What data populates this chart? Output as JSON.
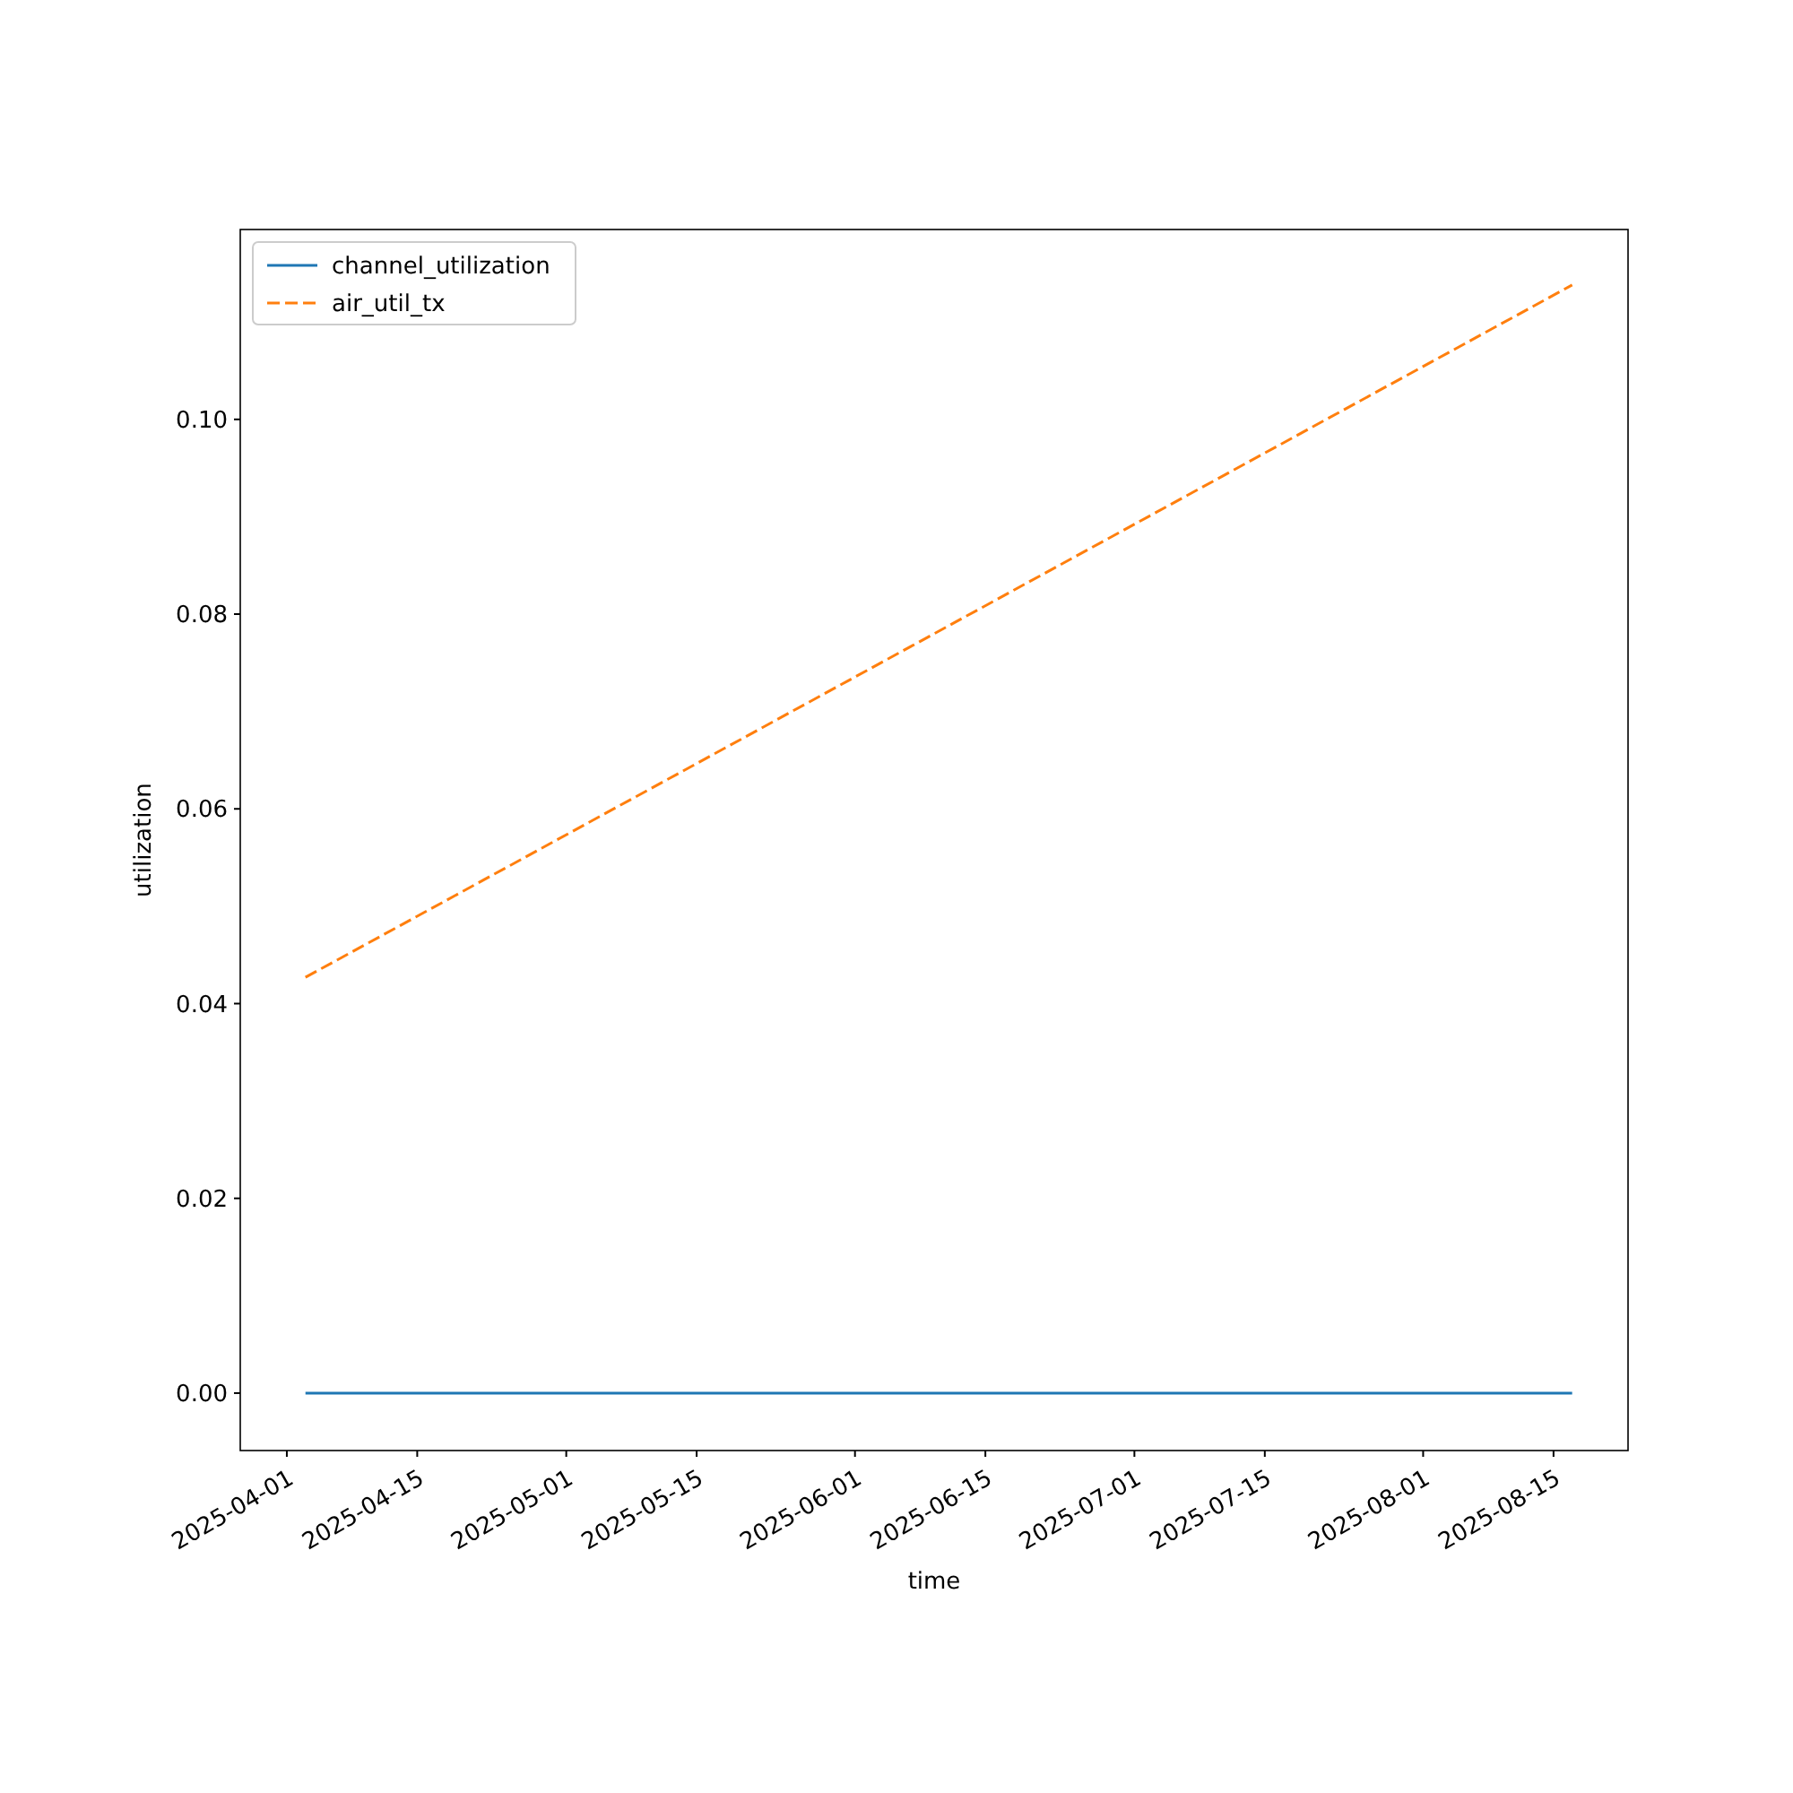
{
  "chart_data": {
    "type": "line",
    "xlabel": "time",
    "ylabel": "utilization",
    "xlim": [
      "2025-03-27",
      "2025-08-23"
    ],
    "ylim": [
      -0.0059,
      0.1195
    ],
    "xticks": [
      "2025-04-01",
      "2025-04-15",
      "2025-05-01",
      "2025-05-15",
      "2025-06-01",
      "2025-06-15",
      "2025-07-01",
      "2025-07-15",
      "2025-08-01",
      "2025-08-15"
    ],
    "yticks": [
      {
        "value": 0,
        "label": "0.00"
      },
      {
        "value": 0.02,
        "label": "0.02"
      },
      {
        "value": 0.04,
        "label": "0.04"
      },
      {
        "value": 0.06,
        "label": "0.06"
      },
      {
        "value": 0.08,
        "label": "0.08"
      },
      {
        "value": 0.1,
        "label": "0.10"
      }
    ],
    "x": [
      "2025-04-03",
      "2025-08-17"
    ],
    "series": [
      {
        "name": "channel_utilization",
        "color": "#1f77b4",
        "values": [
          0,
          0
        ],
        "line_style": "solid"
      },
      {
        "name": "air_util_tx",
        "color": "#ff7f0e",
        "values": [
          0.0427,
          0.1138
        ],
        "line_style": "dashed"
      }
    ],
    "legend": "top left",
    "grid": false
  }
}
